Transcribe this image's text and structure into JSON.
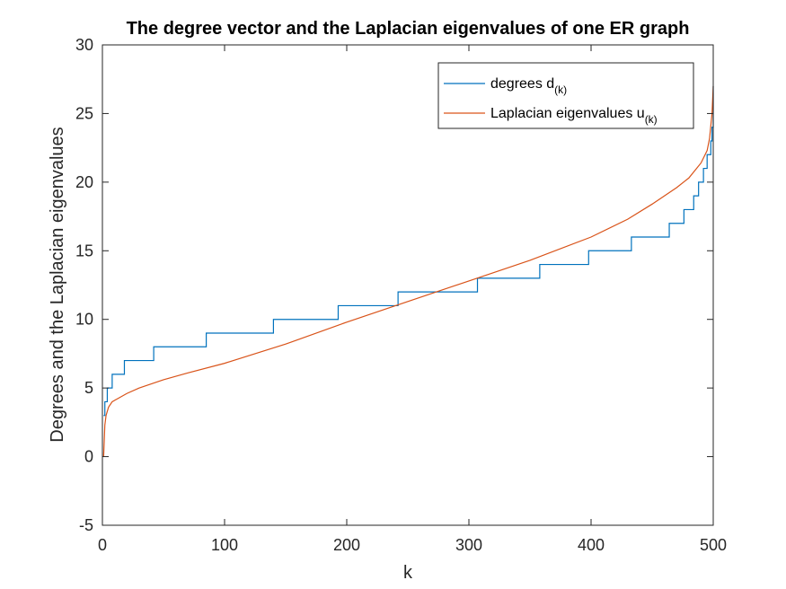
{
  "chart_data": {
    "type": "line",
    "title": "The degree vector and the Laplacian eigenvalues of one ER graph",
    "xlabel": "k",
    "ylabel": "Degrees and the Laplacian eigenvalues",
    "xlim": [
      0,
      500
    ],
    "ylim": [
      -5,
      30
    ],
    "xticks": [
      0,
      100,
      200,
      300,
      400,
      500
    ],
    "yticks": [
      -5,
      0,
      5,
      10,
      15,
      20,
      25,
      30
    ],
    "grid": false,
    "legend_position": "top-right",
    "series": [
      {
        "name": "degrees d(k)",
        "legend_main": "degrees d",
        "legend_sub": "(k)",
        "color": "#0072BD",
        "style": "step",
        "x": [
          1,
          2,
          4,
          8,
          18,
          42,
          85,
          140,
          193,
          242,
          307,
          358,
          398,
          433,
          464,
          476,
          484,
          488,
          492,
          495,
          498,
          499,
          500
        ],
        "y": [
          3,
          4,
          5,
          6,
          7,
          8,
          9,
          10,
          11,
          12,
          13,
          14,
          15,
          16,
          17,
          18,
          19,
          20,
          21,
          22,
          23,
          24,
          27
        ]
      },
      {
        "name": "Laplacian eigenvalues u(k)",
        "legend_main": "Laplacian eigenvalues u",
        "legend_sub": "(k)",
        "color": "#D95319",
        "style": "line",
        "x": [
          1,
          2,
          3,
          5,
          8,
          12,
          20,
          30,
          50,
          70,
          100,
          150,
          200,
          250,
          300,
          350,
          400,
          430,
          450,
          470,
          480,
          490,
          495,
          497,
          499,
          500
        ],
        "y": [
          0,
          2.3,
          3.0,
          3.6,
          4.0,
          4.2,
          4.6,
          5.0,
          5.6,
          6.1,
          6.8,
          8.2,
          9.8,
          11.3,
          12.8,
          14.3,
          16.0,
          17.3,
          18.4,
          19.6,
          20.3,
          21.4,
          22.3,
          23.2,
          25.0,
          27.0
        ]
      }
    ]
  }
}
